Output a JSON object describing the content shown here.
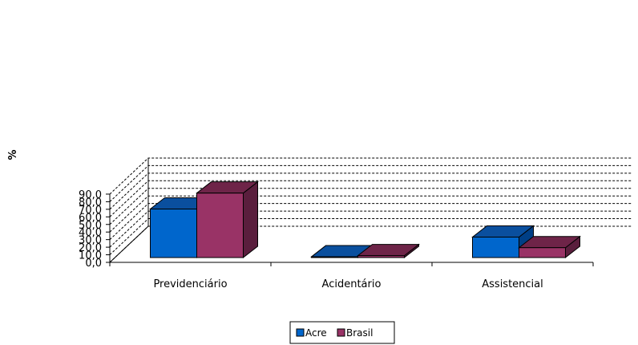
{
  "chart_data": {
    "type": "bar",
    "style": "3d-clustered-column",
    "categories": [
      "Previdenciário",
      "Acidentário",
      "Assistencial"
    ],
    "series": [
      {
        "name": "Acre",
        "values": [
          64.0,
          1.0,
          27.0
        ],
        "color": "#0066cc",
        "side_color": "#003f86",
        "top_color": "#0a4f9e"
      },
      {
        "name": "Brasil",
        "values": [
          85.0,
          2.5,
          13.0
        ],
        "color": "#993366",
        "side_color": "#5a1e3d",
        "top_color": "#6e2448"
      }
    ],
    "ylabel": "%",
    "xlabel": "",
    "ylim": [
      0,
      90
    ],
    "ytick_labels": [
      "0,0",
      "10,0",
      "20,0",
      "30,0",
      "40,0",
      "50,0",
      "60,0",
      "70,0",
      "80,0",
      "90,0"
    ],
    "grid": true,
    "legend": "bottom-center"
  }
}
